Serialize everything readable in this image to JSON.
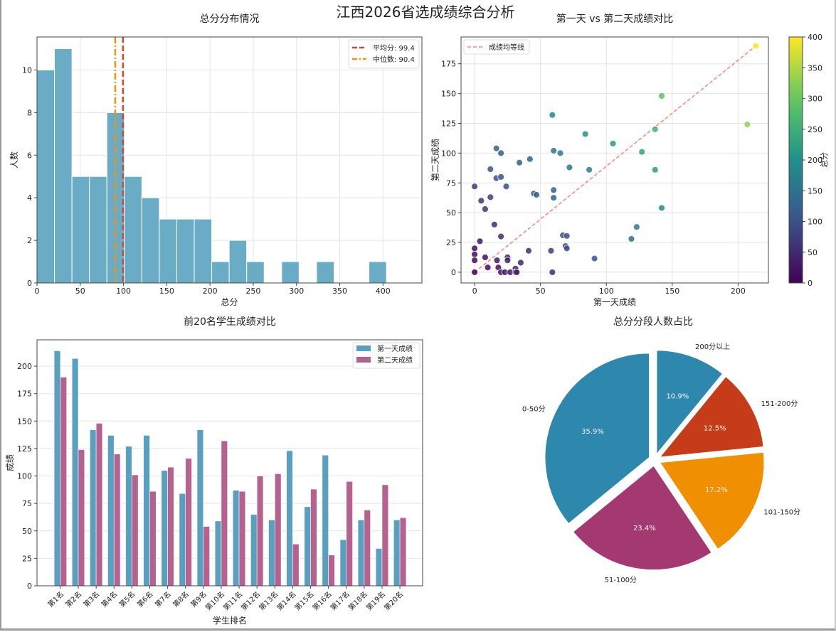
{
  "suptitle": "江西2026省选成绩综合分析",
  "chart_data": [
    {
      "type": "bar",
      "subtype": "histogram",
      "title": "总分分布情况",
      "xlabel": "总分",
      "ylabel": "人数",
      "bin_start": 0,
      "bin_width": 20.2,
      "counts": [
        10,
        11,
        5,
        5,
        8,
        5,
        4,
        3,
        3,
        3,
        1,
        2,
        1,
        0,
        1,
        0,
        1,
        0,
        0,
        1
      ],
      "xlim": [
        0,
        445
      ],
      "ylim": [
        0,
        11.55
      ],
      "xticks": [
        0,
        50,
        100,
        150,
        200,
        250,
        300,
        350,
        400
      ],
      "yticks": [
        0,
        2,
        4,
        6,
        8,
        10
      ],
      "grid": true,
      "bar_color": "#6AABC6",
      "vlines": [
        {
          "label": "平均分: 99.4",
          "value": 99.4,
          "color": "#D9442B",
          "style": "dashed"
        },
        {
          "label": "中位数: 90.4",
          "value": 90.4,
          "color": "#F0940F",
          "style": "dashdot"
        }
      ],
      "legend": "top-right"
    },
    {
      "type": "scatter",
      "title": "第一天 vs 第二天成绩对比",
      "xlabel": "第一天成绩",
      "ylabel": "第二天成绩",
      "xlim": [
        -10.3,
        223
      ],
      "ylim": [
        -9,
        197.5
      ],
      "xticks": [
        0,
        50,
        100,
        150,
        200
      ],
      "yticks": [
        0,
        25,
        50,
        75,
        100,
        125,
        150,
        175
      ],
      "grid": true,
      "points": [
        [
          213.5,
          190
        ],
        [
          142,
          148
        ],
        [
          207,
          124
        ],
        [
          59,
          132
        ],
        [
          84,
          116
        ],
        [
          105,
          108
        ],
        [
          137,
          120
        ],
        [
          127,
          101
        ],
        [
          137,
          86
        ],
        [
          142,
          54
        ],
        [
          16.5,
          104
        ],
        [
          20,
          100
        ],
        [
          60,
          102
        ],
        [
          65,
          100
        ],
        [
          72,
          88
        ],
        [
          87,
          86
        ],
        [
          34,
          92
        ],
        [
          42,
          95
        ],
        [
          12,
          86.5
        ],
        [
          16.5,
          79
        ],
        [
          20,
          80
        ],
        [
          24,
          72
        ],
        [
          0,
          72
        ],
        [
          45,
          66
        ],
        [
          47,
          65
        ],
        [
          60,
          69
        ],
        [
          60,
          62.5
        ],
        [
          5,
          60
        ],
        [
          12,
          63
        ],
        [
          8,
          53
        ],
        [
          15,
          40
        ],
        [
          4,
          26
        ],
        [
          20,
          30
        ],
        [
          67,
          31
        ],
        [
          70,
          30.5
        ],
        [
          69,
          22
        ],
        [
          70,
          20
        ],
        [
          119,
          28
        ],
        [
          123,
          38
        ],
        [
          91,
          11.5
        ],
        [
          58,
          18
        ],
        [
          41,
          18
        ],
        [
          0,
          20
        ],
        [
          0,
          15
        ],
        [
          0,
          10
        ],
        [
          8,
          12.5
        ],
        [
          17,
          10
        ],
        [
          25,
          12.5
        ],
        [
          25,
          10
        ],
        [
          35,
          8
        ],
        [
          10,
          4
        ],
        [
          18,
          4
        ],
        [
          31,
          3
        ],
        [
          0,
          0
        ],
        [
          20,
          0
        ],
        [
          23,
          0
        ],
        [
          27,
          0
        ],
        [
          31,
          0
        ],
        [
          32,
          0
        ],
        [
          59,
          0
        ]
      ],
      "color_by": "总分",
      "colormap": "viridis",
      "colorbar": {
        "label": "总分",
        "range": [
          0,
          400
        ],
        "ticks": [
          0,
          50,
          100,
          150,
          200,
          250,
          300,
          350,
          400
        ]
      },
      "reference_line": {
        "label": "成绩均等线",
        "from": [
          0,
          0
        ],
        "to": [
          213.5,
          190
        ],
        "color": "#FF8080",
        "style": "dashed"
      },
      "legend": "top-left"
    },
    {
      "type": "bar",
      "title": "前20名学生成绩对比",
      "xlabel": "学生排名",
      "ylabel": "成绩",
      "categories": [
        "第1名",
        "第2名",
        "第3名",
        "第4名",
        "第5名",
        "第6名",
        "第7名",
        "第8名",
        "第9名",
        "第10名",
        "第11名",
        "第12名",
        "第13名",
        "第14名",
        "第15名",
        "第16名",
        "第17名",
        "第18名",
        "第19名",
        "第20名"
      ],
      "series": [
        {
          "name": "第一天成绩",
          "color": "#5A9FC0",
          "values": [
            214,
            207,
            142,
            137,
            127,
            137,
            105,
            84,
            142,
            59,
            87,
            65,
            60,
            123,
            72,
            119,
            42,
            60,
            34,
            60
          ]
        },
        {
          "name": "第二天成绩",
          "color": "#B5628E",
          "values": [
            190,
            124,
            148,
            120,
            101,
            86,
            108,
            116,
            54,
            132,
            86,
            100,
            102,
            38,
            88,
            28,
            95,
            69,
            92,
            62
          ]
        }
      ],
      "ylim": [
        0,
        224
      ],
      "yticks": [
        0,
        25,
        50,
        75,
        100,
        125,
        150,
        175,
        200
      ],
      "grid": true,
      "legend": "top-right"
    },
    {
      "type": "pie",
      "title": "总分分段人数占比",
      "start_angle": 90,
      "slices": [
        {
          "label": "0-50分",
          "value": 35.9,
          "pct": "35.9%",
          "color": "#2E88AE"
        },
        {
          "label": "51-100分",
          "value": 23.4,
          "pct": "23.4%",
          "color": "#A43871"
        },
        {
          "label": "101-150分",
          "value": 17.2,
          "pct": "17.2%",
          "color": "#F08F02"
        },
        {
          "label": "151-200分",
          "value": 12.5,
          "pct": "12.5%",
          "color": "#C63C19"
        },
        {
          "label": "200分以上",
          "value": 10.9,
          "pct": "10.9%",
          "color": "#2E88AE"
        }
      ]
    }
  ]
}
